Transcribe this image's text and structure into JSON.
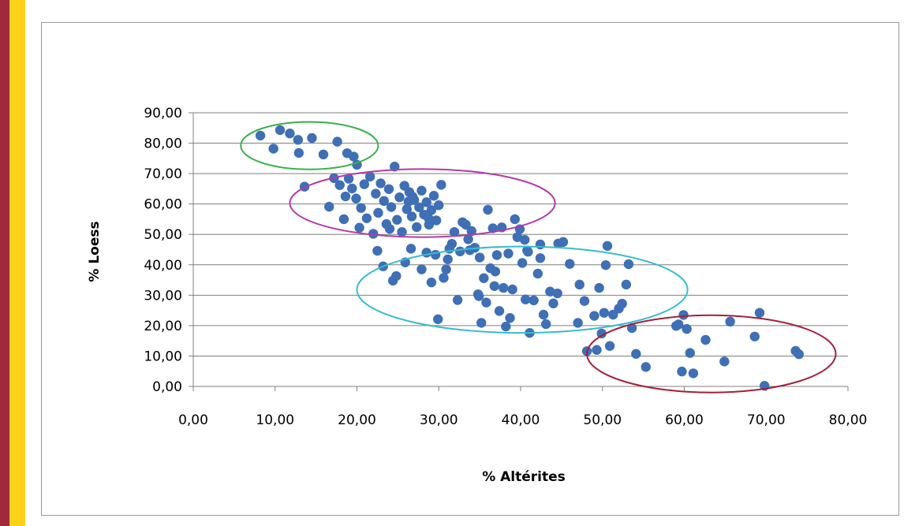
{
  "theme": {
    "bar_dark": "#9e2a3c",
    "bar_accent": "#ffd21a",
    "point_color": "#3f6fb5",
    "gridline": "#7f7f7f",
    "axis": "#808080"
  },
  "chart_data": {
    "type": "scatter",
    "title": "",
    "xlabel": "% Altérites",
    "ylabel": "% Loess",
    "xlim": [
      0,
      80
    ],
    "ylim": [
      0,
      90
    ],
    "x_ticks": [
      "0,00",
      "10,00",
      "20,00",
      "30,00",
      "40,00",
      "50,00",
      "60,00",
      "70,00",
      "80,00"
    ],
    "y_ticks": [
      "0,00",
      "10,00",
      "20,00",
      "30,00",
      "40,00",
      "50,00",
      "60,00",
      "70,00",
      "80,00",
      "90,00"
    ],
    "grid": "horizontal",
    "legend": "none",
    "series": [
      {
        "marker_color": "#3f6fb5",
        "points": [
          [
            8.2,
            82.5
          ],
          [
            10.6,
            84.3
          ],
          [
            11.8,
            83.2
          ],
          [
            12.8,
            81.1
          ],
          [
            14.5,
            81.7
          ],
          [
            9.8,
            78.2
          ],
          [
            12.9,
            76.8
          ],
          [
            15.9,
            76.3
          ],
          [
            17.6,
            80.5
          ],
          [
            18.8,
            76.7
          ],
          [
            19.6,
            75.6
          ],
          [
            20.0,
            72.9
          ],
          [
            13.6,
            65.7
          ],
          [
            16.6,
            59.1
          ],
          [
            17.2,
            68.5
          ],
          [
            17.9,
            66.2
          ],
          [
            18.4,
            55.0
          ],
          [
            18.6,
            62.5
          ],
          [
            19.0,
            68.3
          ],
          [
            19.4,
            65.1
          ],
          [
            19.9,
            61.8
          ],
          [
            20.3,
            52.2
          ],
          [
            20.5,
            58.7
          ],
          [
            20.9,
            66.5
          ],
          [
            21.2,
            55.3
          ],
          [
            21.6,
            69.0
          ],
          [
            22.0,
            50.2
          ],
          [
            22.3,
            63.4
          ],
          [
            22.6,
            57.1
          ],
          [
            22.9,
            66.8
          ],
          [
            23.3,
            61.0
          ],
          [
            23.6,
            53.4
          ],
          [
            23.9,
            64.9
          ],
          [
            24.2,
            59.0
          ],
          [
            24.6,
            72.3
          ],
          [
            24.9,
            54.8
          ],
          [
            25.2,
            62.2
          ],
          [
            25.5,
            50.8
          ],
          [
            25.8,
            66.0
          ],
          [
            26.1,
            58.3
          ],
          [
            26.4,
            63.9
          ],
          [
            26.7,
            55.9
          ],
          [
            27.0,
            61.3
          ],
          [
            27.3,
            52.4
          ],
          [
            27.6,
            58.9
          ],
          [
            27.9,
            64.4
          ],
          [
            28.2,
            56.5
          ],
          [
            28.5,
            60.6
          ],
          [
            28.8,
            53.2
          ],
          [
            29.1,
            58.0
          ],
          [
            29.4,
            62.7
          ],
          [
            29.7,
            54.6
          ],
          [
            30.0,
            59.6
          ],
          [
            30.3,
            66.3
          ],
          [
            24.0,
            51.8
          ],
          [
            26.8,
            62.4
          ],
          [
            23.2,
            39.5
          ],
          [
            24.4,
            34.8
          ],
          [
            24.8,
            36.3
          ],
          [
            25.9,
            40.8
          ],
          [
            26.6,
            45.3
          ],
          [
            27.9,
            38.5
          ],
          [
            28.5,
            44.0
          ],
          [
            29.1,
            34.2
          ],
          [
            29.6,
            43.3
          ],
          [
            29.9,
            22.1
          ],
          [
            30.6,
            35.7
          ],
          [
            30.9,
            38.5
          ],
          [
            31.1,
            41.8
          ],
          [
            31.6,
            46.9
          ],
          [
            31.9,
            50.8
          ],
          [
            32.3,
            28.4
          ],
          [
            32.6,
            44.4
          ],
          [
            32.9,
            54.0
          ],
          [
            33.3,
            53.2
          ],
          [
            33.6,
            48.4
          ],
          [
            34.0,
            51.1
          ],
          [
            34.4,
            45.6
          ],
          [
            34.8,
            30.3
          ],
          [
            35.0,
            42.4
          ],
          [
            35.2,
            20.9
          ],
          [
            35.5,
            35.6
          ],
          [
            35.8,
            27.6
          ],
          [
            36.0,
            58.1
          ],
          [
            36.3,
            38.9
          ],
          [
            36.6,
            52.0
          ],
          [
            36.8,
            33.0
          ],
          [
            37.1,
            43.2
          ],
          [
            37.4,
            24.8
          ],
          [
            37.7,
            52.3
          ],
          [
            37.9,
            32.4
          ],
          [
            38.2,
            19.7
          ],
          [
            38.5,
            43.7
          ],
          [
            38.7,
            22.5
          ],
          [
            39.0,
            31.9
          ],
          [
            39.3,
            55.0
          ],
          [
            39.6,
            49.1
          ],
          [
            39.9,
            51.7
          ],
          [
            40.2,
            40.6
          ],
          [
            40.5,
            48.2
          ],
          [
            40.8,
            44.7
          ],
          [
            41.1,
            17.6
          ],
          [
            41.6,
            28.3
          ],
          [
            42.1,
            37.1
          ],
          [
            42.4,
            46.7
          ],
          [
            42.8,
            23.6
          ],
          [
            43.1,
            20.5
          ],
          [
            43.6,
            31.2
          ],
          [
            44.0,
            27.3
          ],
          [
            44.6,
            47.0
          ],
          [
            45.2,
            47.5
          ],
          [
            46.0,
            40.3
          ],
          [
            47.0,
            20.9
          ],
          [
            47.8,
            28.1
          ],
          [
            48.1,
            11.6
          ],
          [
            49.0,
            23.2
          ],
          [
            49.3,
            12.0
          ],
          [
            49.6,
            32.4
          ],
          [
            49.9,
            17.4
          ],
          [
            50.2,
            24.2
          ],
          [
            50.6,
            46.2
          ],
          [
            50.4,
            39.9
          ],
          [
            50.9,
            13.3
          ],
          [
            51.3,
            23.6
          ],
          [
            52.0,
            25.6
          ],
          [
            52.4,
            27.2
          ],
          [
            52.9,
            33.5
          ],
          [
            53.2,
            40.2
          ],
          [
            53.6,
            19.2
          ],
          [
            54.1,
            10.7
          ],
          [
            55.3,
            6.4
          ],
          [
            59.0,
            19.9
          ],
          [
            59.3,
            20.4
          ],
          [
            59.7,
            4.9
          ],
          [
            59.9,
            23.5
          ],
          [
            60.3,
            18.9
          ],
          [
            60.7,
            11.0
          ],
          [
            61.1,
            4.3
          ],
          [
            62.6,
            15.3
          ],
          [
            64.9,
            8.2
          ],
          [
            65.6,
            21.3
          ],
          [
            68.6,
            16.4
          ],
          [
            69.2,
            24.2
          ],
          [
            69.8,
            0.2
          ],
          [
            73.6,
            11.7
          ],
          [
            74.0,
            10.6
          ],
          [
            26.3,
            60.8
          ],
          [
            28.8,
            55.1
          ],
          [
            22.5,
            44.6
          ],
          [
            31.3,
            45.3
          ],
          [
            33.8,
            44.8
          ],
          [
            34.9,
            29.7
          ],
          [
            36.9,
            37.8
          ],
          [
            40.6,
            28.6
          ],
          [
            44.5,
            30.6
          ],
          [
            47.2,
            33.5
          ],
          [
            40.9,
            44.3
          ],
          [
            42.4,
            42.2
          ]
        ]
      }
    ],
    "ellipses": [
      {
        "cx": 14.2,
        "cy": 79.2,
        "rx": 8.4,
        "ry": 7.8,
        "color": "#3ab04a"
      },
      {
        "cx": 28.0,
        "cy": 60.3,
        "rx": 16.2,
        "ry": 11.2,
        "color": "#b33aa8"
      },
      {
        "cx": 40.2,
        "cy": 31.8,
        "rx": 20.2,
        "ry": 14.2,
        "color": "#36bcd0"
      },
      {
        "cx": 63.3,
        "cy": 10.7,
        "rx": 15.2,
        "ry": 12.7,
        "color": "#a3203c"
      }
    ]
  }
}
